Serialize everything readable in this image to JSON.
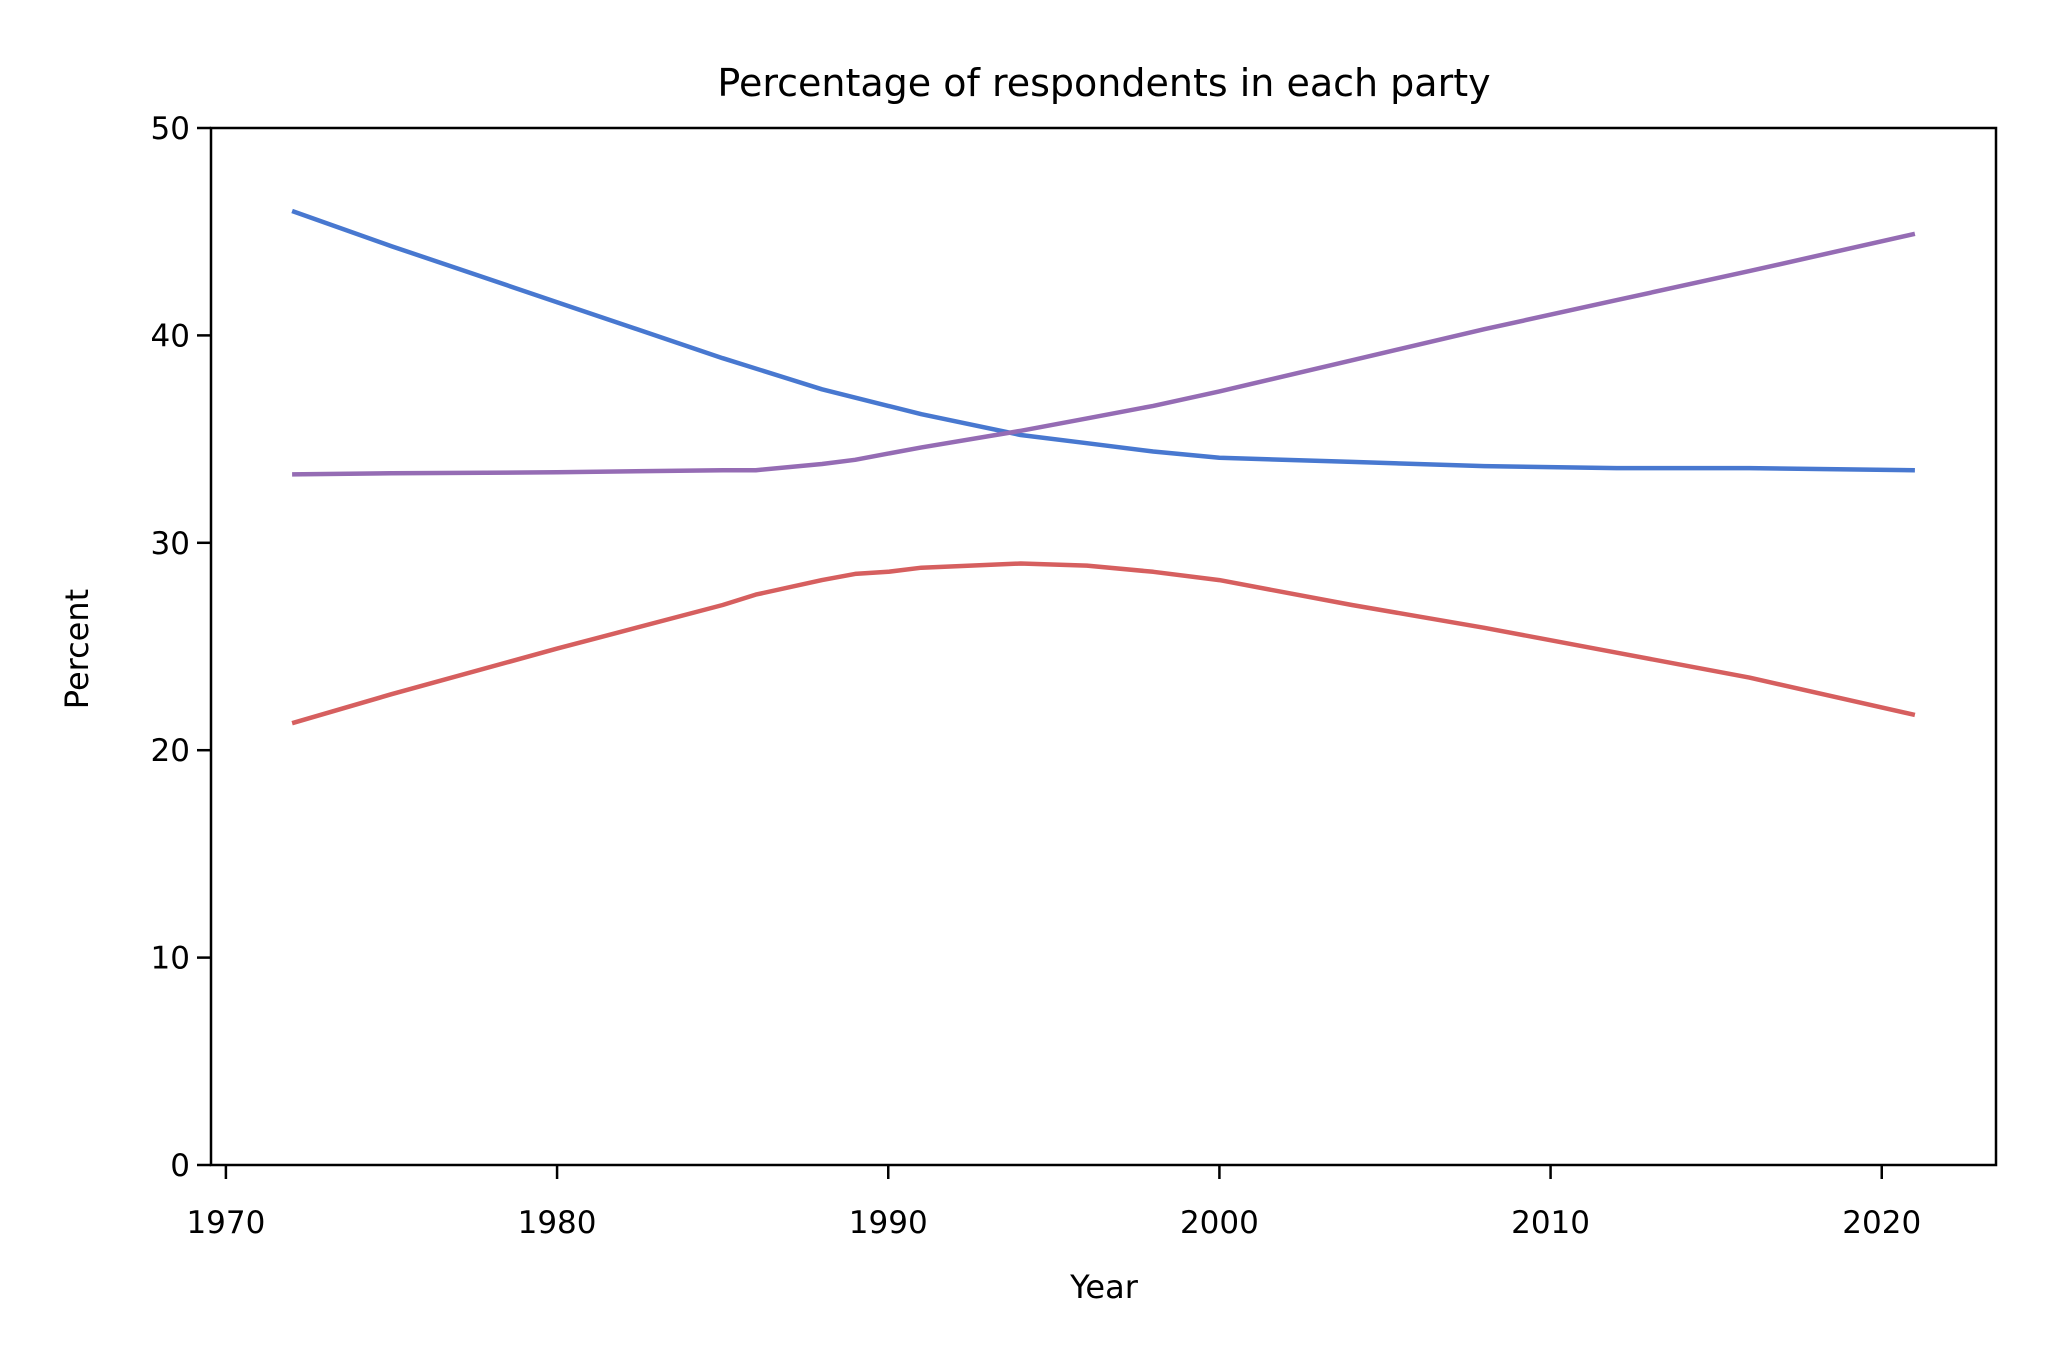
{
  "chart_data": {
    "type": "line",
    "title": "Percentage of respondents in each party",
    "xlabel": "Year",
    "ylabel": "Percent",
    "xlim": [
      1969.55,
      2023.45
    ],
    "ylim": [
      0,
      50
    ],
    "xticks": [
      "1970",
      "1980",
      "1990",
      "2000",
      "2010",
      "2020"
    ],
    "yticks": [
      "0",
      "10",
      "20",
      "30",
      "40",
      "50"
    ],
    "grid": false,
    "legend": "none",
    "series": [
      {
        "color": "#4878d0",
        "x": [
          1972,
          1975,
          1980,
          1985,
          1988,
          1990,
          1991,
          1994,
          1996,
          1998,
          2000,
          2004,
          2008,
          2012,
          2016,
          2021
        ],
        "y": [
          46.0,
          44.3,
          41.6,
          38.9,
          37.4,
          36.6,
          36.2,
          35.2,
          34.8,
          34.4,
          34.1,
          33.9,
          33.7,
          33.6,
          33.6,
          33.5
        ]
      },
      {
        "color": "#956cb4",
        "x": [
          1972,
          1975,
          1980,
          1985,
          1986,
          1988,
          1989,
          1990,
          1991,
          1994,
          1996,
          1998,
          2000,
          2004,
          2008,
          2012,
          2016,
          2021
        ],
        "y": [
          33.3,
          33.35,
          33.4,
          33.5,
          33.5,
          33.8,
          34.0,
          34.3,
          34.6,
          35.4,
          36.0,
          36.6,
          37.3,
          38.8,
          40.3,
          41.7,
          43.1,
          44.9
        ]
      },
      {
        "color": "#d65f5f",
        "x": [
          1972,
          1975,
          1980,
          1985,
          1986,
          1988,
          1989,
          1990,
          1991,
          1994,
          1996,
          1998,
          2000,
          2004,
          2008,
          2012,
          2016,
          2021
        ],
        "y": [
          21.3,
          22.7,
          24.9,
          27.0,
          27.5,
          28.2,
          28.5,
          28.6,
          28.8,
          29.0,
          28.9,
          28.6,
          28.2,
          27.0,
          25.9,
          24.7,
          23.5,
          21.7
        ]
      }
    ]
  }
}
